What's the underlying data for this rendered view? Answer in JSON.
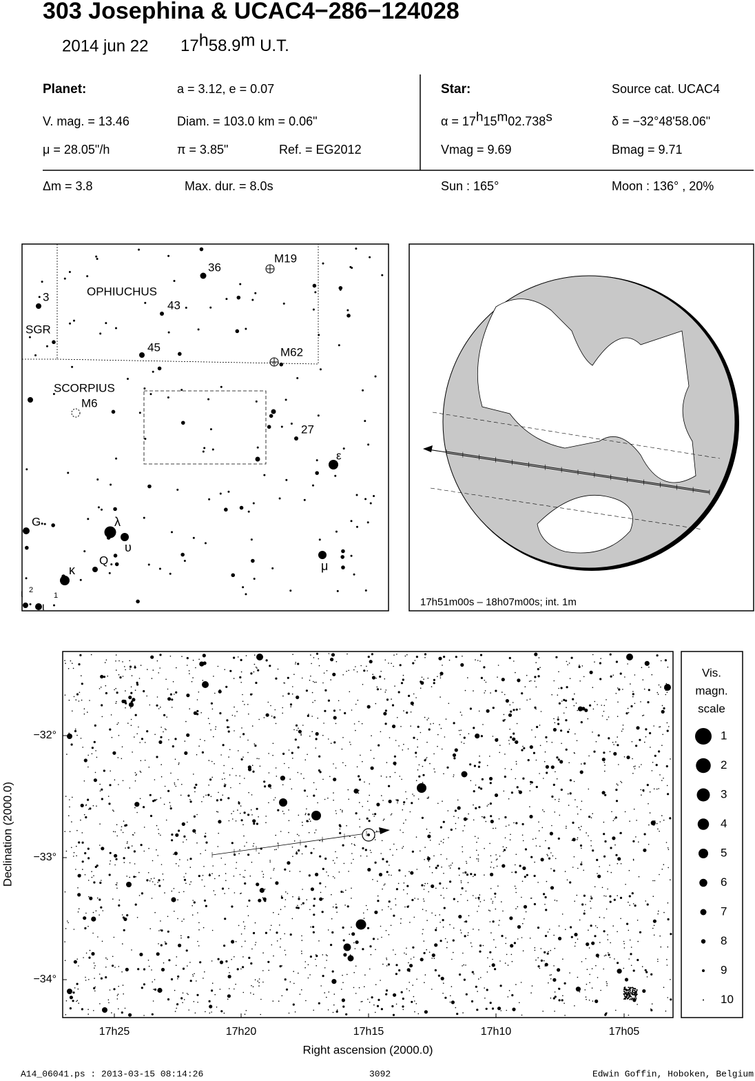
{
  "header": {
    "title": "303 Josephina  &  UCAC4−286−124028",
    "date": "2014 jun 22",
    "time": [
      "17",
      "h",
      "58.9",
      "m",
      " U.T."
    ]
  },
  "table": {
    "planet": {
      "label": "Planet:",
      "orbit": "a = 3.12, e = 0.07",
      "vmag": "V. mag. = 13.46",
      "diam": "Diam. = 103.0 km = 0.06\"",
      "mu": "μ =  28.05\"/h",
      "pi": "π =  3.85\"",
      "ref": "Ref. = EG2012"
    },
    "star": {
      "label": "Star:",
      "source": "Source cat.  UCAC4",
      "alpha": [
        "α = 17",
        "h",
        "15",
        "m",
        "02.738",
        "s"
      ],
      "delta": "δ = −32°48'58.06\"",
      "vmag": "Vmag =  9.69",
      "bmag": "Bmag =  9.71"
    },
    "footer_row": [
      "Δm = 3.8",
      "Max. dur. = 8.0s",
      "Sun : 165°",
      "Moon : 136° , 20%"
    ]
  },
  "finder": {
    "labels": [
      "3",
      "OPHIUCHUS",
      "43",
      "36",
      "M19",
      "SGR",
      "45",
      "M62",
      "SCORPIUS",
      "M6",
      "27",
      "ε",
      "G",
      "λ",
      "υ",
      "Q",
      "κ",
      "μ",
      "ι",
      "2",
      "ι",
      "1"
    ]
  },
  "globe": {
    "caption": "17h51m00s – 18h07m00s; int.  1m"
  },
  "chart": {
    "xticks": [
      "17h25",
      "17h20",
      "17h15",
      "17h10",
      "17h05"
    ],
    "yticks": [
      "−32°",
      "−33°",
      "−34°"
    ],
    "xlabel": "Right ascension (2000.0)",
    "ylabel": "Declination (2000.0)",
    "scale_title": [
      "Vis.",
      "magn.",
      "scale"
    ],
    "scale": [
      1,
      2,
      3,
      4,
      5,
      6,
      7,
      8,
      9,
      10
    ]
  },
  "footer": {
    "file": "A14_06041.ps : 2013-03-15 08:14:26",
    "page": "3092",
    "author": "Edwin Goffin, Hoboken, Belgium"
  }
}
